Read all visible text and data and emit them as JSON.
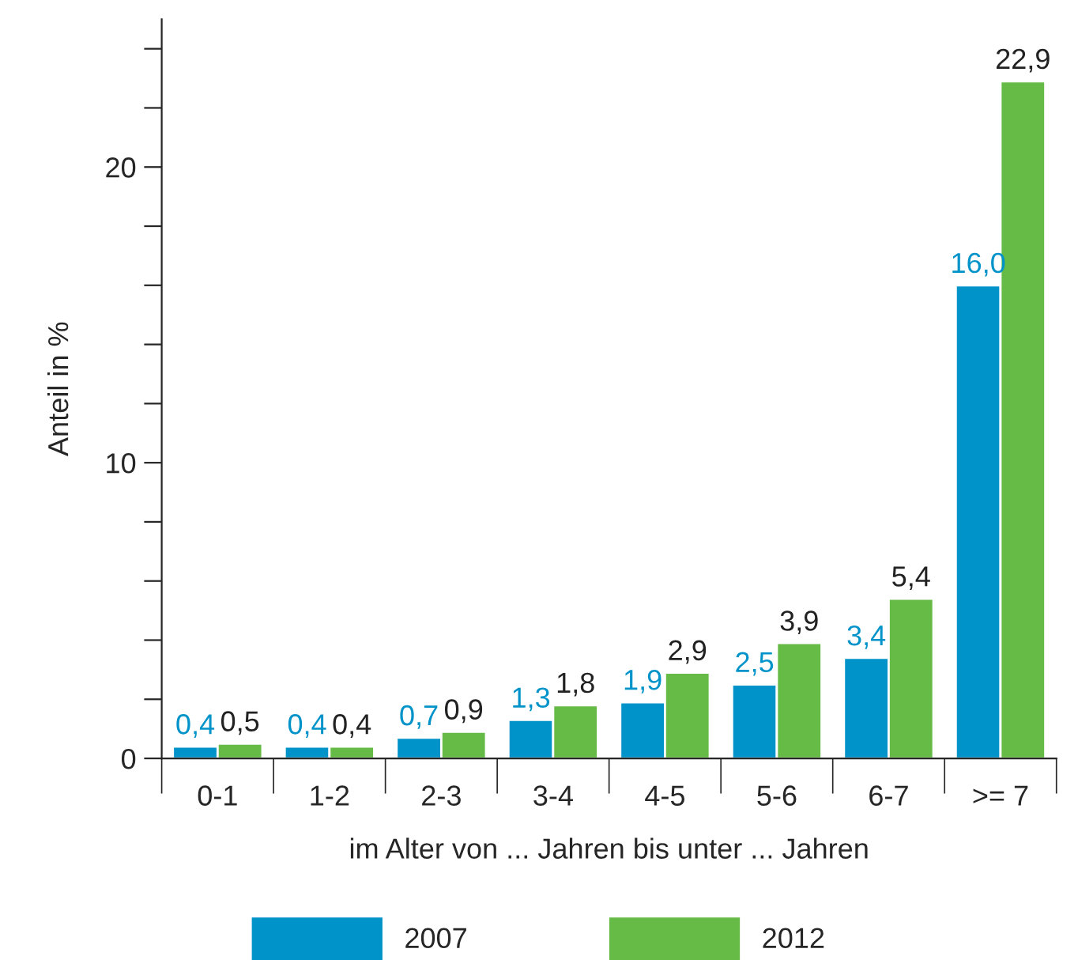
{
  "chart_data": {
    "type": "bar",
    "ylabel": "Anteil in %",
    "xlabel": "im Alter von ... Jahren bis unter ... Jahren",
    "categories": [
      "0-1",
      "1-2",
      "2-3",
      "3-4",
      "4-5",
      "5-6",
      "6-7",
      ">= 7"
    ],
    "series": [
      {
        "name": "2007",
        "color": "#0093c9",
        "values": [
          0.4,
          0.4,
          0.7,
          1.3,
          1.9,
          2.5,
          3.4,
          16.0
        ],
        "value_labels": [
          "0,4",
          "0,4",
          "0,7",
          "1,3",
          "1,9",
          "2,5",
          "3,4",
          "16,0"
        ]
      },
      {
        "name": "2012",
        "color": "#66bb46",
        "values": [
          0.5,
          0.4,
          0.9,
          1.8,
          2.9,
          3.9,
          5.4,
          22.9
        ],
        "value_labels": [
          "0,5",
          "0,4",
          "0,9",
          "1,8",
          "2,9",
          "3,9",
          "5,4",
          "22,9"
        ]
      }
    ],
    "ylim": [
      0,
      25
    ],
    "yticks": [
      0,
      {
        "value": 2,
        "label": null
      },
      {
        "value": 4,
        "label": null
      },
      {
        "value": 6,
        "label": null
      },
      {
        "value": 8,
        "label": null
      },
      10,
      {
        "value": 12,
        "label": null
      },
      {
        "value": 14,
        "label": null
      },
      {
        "value": 16,
        "label": null
      },
      {
        "value": 18,
        "label": null
      },
      20,
      {
        "value": 22,
        "label": null
      },
      {
        "value": 24,
        "label": null
      }
    ],
    "grid": false,
    "legend": "bottom"
  }
}
